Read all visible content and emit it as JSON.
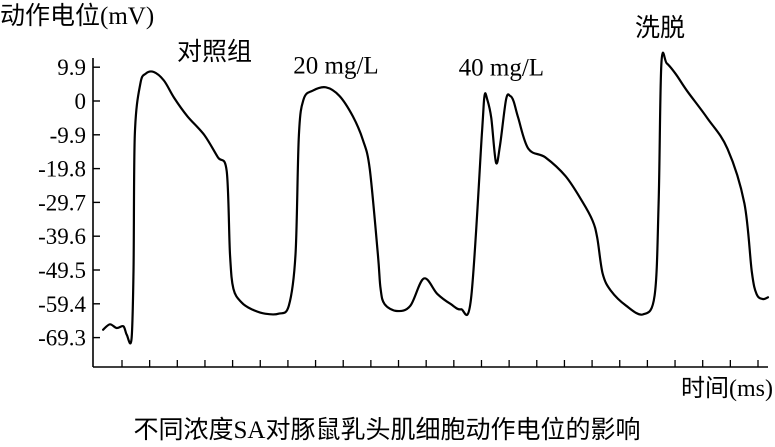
{
  "chart_data": {
    "type": "line",
    "title": "",
    "caption": "不同浓度SA对豚鼠乳头肌细胞动作电位的影响",
    "ylabel": "动作电位(mV)",
    "xlabel": "时间(ms)",
    "yticks": [
      "9.9",
      "0",
      "-9.9",
      "-19.8",
      "-29.7",
      "-39.6",
      "-49.5",
      "-59.4",
      "-69.3"
    ],
    "ytick_values": [
      9.9,
      0,
      -9.9,
      -19.8,
      -29.7,
      -39.6,
      -49.5,
      -59.4,
      -69.3
    ],
    "ylim": [
      -77,
      17
    ],
    "xlim": [
      0,
      100
    ],
    "x_tick_count": 24,
    "x_tick_labels_shown": false,
    "grid": false,
    "annotations": [
      {
        "text": "对照组",
        "x": 18,
        "y": 12
      },
      {
        "text": "20 mg/L",
        "x": 36,
        "y": 8
      },
      {
        "text": "40 mg/L",
        "x": 60.5,
        "y": 7.5
      },
      {
        "text": "洗脱",
        "x": 84,
        "y": 19
      }
    ],
    "series": [
      {
        "name": "",
        "color": "#000000",
        "x": [
          1.5,
          2.5,
          3.5,
          4.5,
          5.0,
          5.7,
          6.0,
          6.2,
          7.0,
          7.8,
          9.0,
          10.5,
          12.0,
          14.0,
          16.5,
          18.5,
          19.8,
          20.3,
          20.8,
          22.0,
          23.5,
          25.5,
          27.5,
          29.0,
          30.0,
          30.5,
          31.2,
          32.5,
          34.5,
          36.5,
          38.5,
          40.0,
          41.0,
          42.2,
          42.6,
          43.2,
          45.0,
          47.0,
          49.0,
          51.0,
          53.0,
          54.5,
          56.0,
          57.6,
          58.0,
          58.4,
          59.0,
          59.7,
          60.3,
          61.2,
          61.8,
          62.3,
          63.0,
          64.5,
          67.0,
          70.0,
          72.5,
          74.0,
          74.7,
          75.5,
          76.7,
          79.0,
          81.5,
          83.2,
          83.8,
          84.2,
          85.0,
          86.3,
          88.0,
          91.0,
          94.0,
          96.5,
          97.6,
          98.3,
          99.2,
          100.0
        ],
        "y": [
          -67.0,
          -65.4,
          -66.5,
          -66.0,
          -68.5,
          -69.8,
          -50.0,
          -10.0,
          5.0,
          8.0,
          8.5,
          6.0,
          1.0,
          -4.5,
          -10.0,
          -16.5,
          -20.5,
          -45.0,
          -55.0,
          -59.0,
          -61.0,
          -62.3,
          -62.3,
          -60.0,
          -45.0,
          -10.0,
          0.5,
          3.0,
          4.0,
          1.5,
          -4.5,
          -11.5,
          -20.0,
          -45.0,
          -55.0,
          -59.5,
          -61.5,
          -60.0,
          -52.0,
          -56.5,
          -59.5,
          -61.0,
          -58.0,
          -10.0,
          1.5,
          0.5,
          -5.0,
          -18.0,
          -13.0,
          0.5,
          1.5,
          0.0,
          -5.0,
          -14.0,
          -16.5,
          -22.0,
          -29.5,
          -35.0,
          -40.0,
          -50.5,
          -55.5,
          -60.0,
          -62.5,
          -57.0,
          -30.0,
          11.0,
          11.0,
          8.0,
          3.0,
          -5.0,
          -14.0,
          -30.0,
          -50.0,
          -56.5,
          -58.0,
          -57.5
        ]
      }
    ]
  }
}
